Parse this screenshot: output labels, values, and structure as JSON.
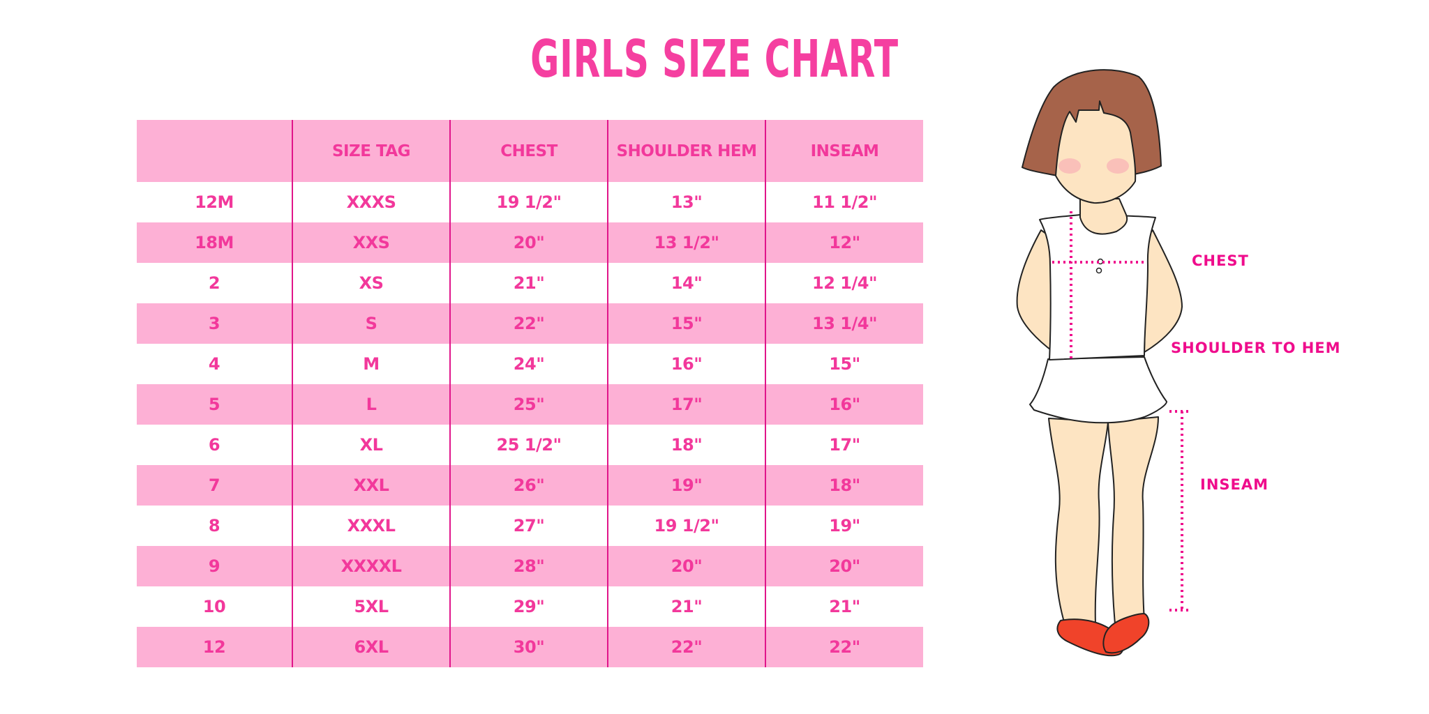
{
  "title": "GIRLS SIZE CHART",
  "colors": {
    "accent": "#f53fa0",
    "row_pink": "#fdb0d5",
    "divider": "#e0158a",
    "label": "#ef0c8c"
  },
  "table": {
    "headers": [
      "",
      "SIZE TAG",
      "CHEST",
      "SHOULDER HEM",
      "INSEAM"
    ],
    "rows": [
      [
        "12M",
        "XXXS",
        "19 1/2\"",
        "13\"",
        "11 1/2\""
      ],
      [
        "18M",
        "XXS",
        "20\"",
        "13 1/2\"",
        "12\""
      ],
      [
        "2",
        "XS",
        "21\"",
        "14\"",
        "12 1/4\""
      ],
      [
        "3",
        "S",
        "22\"",
        "15\"",
        "13 1/4\""
      ],
      [
        "4",
        "M",
        "24\"",
        "16\"",
        "15\""
      ],
      [
        "5",
        "L",
        "25\"",
        "17\"",
        "16\""
      ],
      [
        "6",
        "XL",
        "25 1/2\"",
        "18\"",
        "17\""
      ],
      [
        "7",
        "XXL",
        "26\"",
        "19\"",
        "18\""
      ],
      [
        "8",
        "XXXL",
        "27\"",
        "19 1/2\"",
        "19\""
      ],
      [
        "9",
        "XXXXL",
        "28\"",
        "20\"",
        "20\""
      ],
      [
        "10",
        "5XL",
        "29\"",
        "21\"",
        "21\""
      ],
      [
        "12",
        "6XL",
        "30\"",
        "22\"",
        "22\""
      ]
    ]
  },
  "figure": {
    "labels": {
      "chest": "CHEST",
      "shoulder_to_hem": "SHOULDER TO HEM",
      "inseam": "INSEAM"
    }
  }
}
